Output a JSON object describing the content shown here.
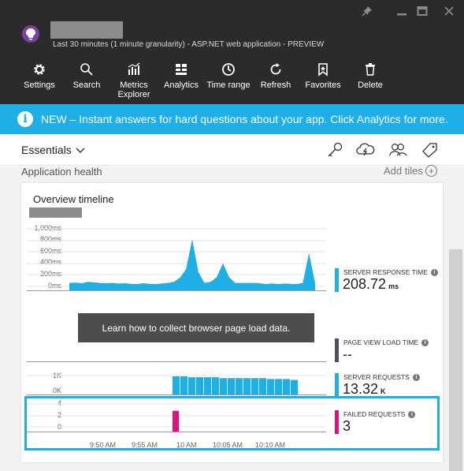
{
  "window": {
    "subtitle": "Last 30 minutes (1 minute granularity) - ASP.NET web application - PREVIEW",
    "controls": [
      "pin-icon",
      "minimize-icon",
      "maximize-icon",
      "close-icon"
    ]
  },
  "toolbar": {
    "items": [
      {
        "label": "Settings",
        "icon": "gear-icon"
      },
      {
        "label": "Search",
        "icon": "search-icon"
      },
      {
        "label": "Metrics\nExplorer",
        "icon": "metrics-explorer-icon"
      },
      {
        "label": "Analytics",
        "icon": "analytics-icon"
      },
      {
        "label": "Time range",
        "icon": "clock-icon"
      },
      {
        "label": "Refresh",
        "icon": "refresh-icon"
      },
      {
        "label": "Favorites",
        "icon": "bookmark-icon"
      },
      {
        "label": "Delete",
        "icon": "trash-icon"
      }
    ]
  },
  "banner": {
    "icon": "info-icon",
    "info_glyph": "i",
    "text": "NEW – Instant answers for hard questions about your app. Click Analytics for more."
  },
  "essentials": {
    "label": "Essentials",
    "icons": [
      "key-icon",
      "cloud-lightning-icon",
      "users-icon",
      "tag-icon"
    ]
  },
  "section": {
    "title": "Application health",
    "add_tiles": "Add tiles",
    "add_glyph": "+"
  },
  "card": {
    "title": "Overview timeline",
    "learn_button": "Learn how to collect browser page load data."
  },
  "colors": {
    "accent": "#1dafe6",
    "failed": "#e0117f",
    "page_view": "#4d4f5c",
    "titlebar": "#2b2b2b",
    "app_icon": "#7a3fa0"
  },
  "metrics": {
    "info_glyph": "i",
    "server_response": {
      "label": "SERVER RESPONSE TIME",
      "value": "208.72",
      "unit": "ms"
    },
    "page_view": {
      "label": "PAGE VIEW LOAD TIME",
      "value": "--"
    },
    "server_requests": {
      "label": "SERVER REQUESTS",
      "value": "13.32",
      "unit": "K"
    },
    "failed": {
      "label": "FAILED REQUESTS",
      "value": "3"
    }
  },
  "chart_data": [
    {
      "type": "area",
      "series": [
        {
          "name": "SERVER RESPONSE TIME",
          "values": [
            60,
            65,
            55,
            80,
            70,
            60,
            55,
            60,
            50,
            55,
            45,
            40,
            55,
            45,
            40,
            50,
            60,
            80,
            150,
            300,
            820,
            250,
            60,
            80,
            160,
            400,
            160,
            60,
            60,
            60,
            60,
            55,
            40,
            50,
            40,
            50,
            45,
            40,
            60,
            580,
            60
          ]
        }
      ],
      "y_ticks": [
        "1,000ms",
        "800ms",
        "600ms",
        "400ms",
        "200ms",
        "0ms"
      ],
      "ylim": [
        0,
        1000
      ]
    },
    {
      "type": "bar",
      "series": [
        {
          "name": "SERVER REQUESTS",
          "values": [
            1000,
            1000,
            950,
            950,
            950,
            950,
            900,
            900,
            900,
            900,
            900,
            900,
            850,
            850,
            850,
            800
          ]
        }
      ],
      "y_ticks": [
        "1K",
        "0K"
      ]
    },
    {
      "type": "bar",
      "series": [
        {
          "name": "FAILED REQUESTS",
          "values": [
            3
          ]
        }
      ],
      "y_ticks": [
        "4",
        "2",
        "0"
      ],
      "ylim": [
        0,
        4
      ]
    }
  ],
  "x_ticks": [
    "9:50 AM",
    "9:55 AM",
    "10 AM",
    "10:05 AM",
    "10:10 AM"
  ]
}
